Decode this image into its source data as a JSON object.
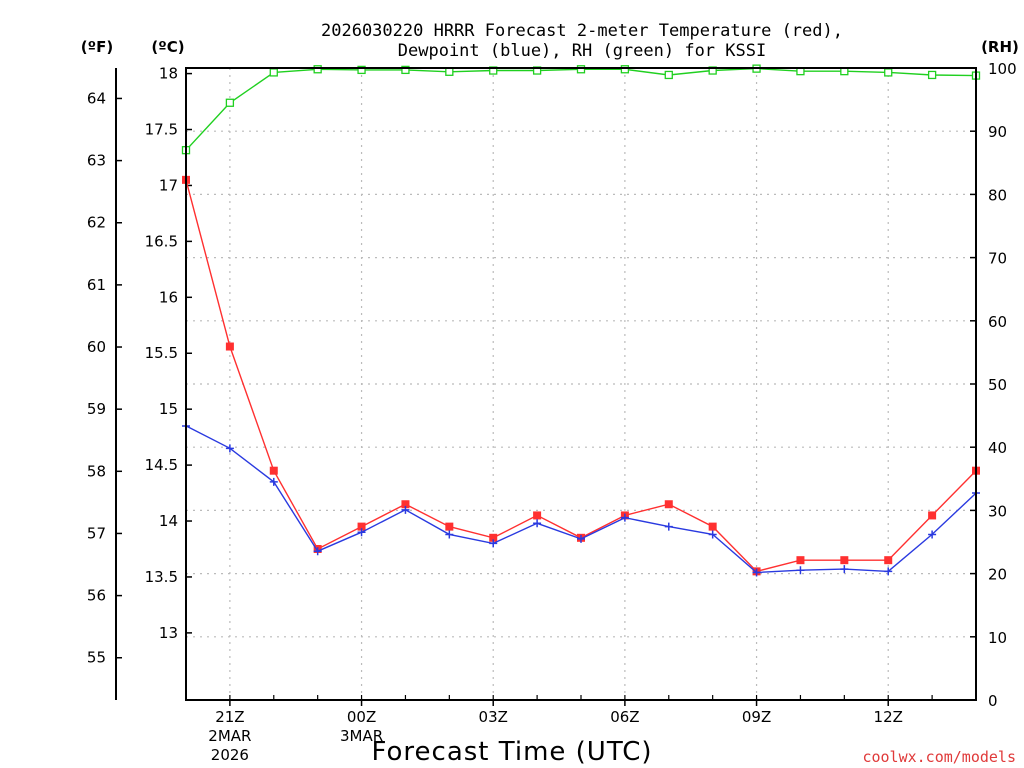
{
  "title_line1": "2026030220 HRRR Forecast 2-meter Temperature (red),",
  "title_line2": "Dewpoint (blue), RH (green) for KSSI",
  "unit_f": "(ºF)",
  "unit_c": "(ºC)",
  "unit_rh": "(RH)",
  "credit": "coolwx.com/models",
  "colors": {
    "temperature": "#ff3030",
    "dewpoint": "#2a3ae0",
    "rh": "#20d020",
    "grid": "#bbbbbb"
  },
  "chart_data": {
    "type": "line",
    "xlabel": "Forecast Time (UTC)",
    "x": [
      "2026-03-02 20Z",
      "2026-03-02 21Z",
      "2026-03-02 22Z",
      "2026-03-02 23Z",
      "2026-03-03 00Z",
      "2026-03-03 01Z",
      "2026-03-03 02Z",
      "2026-03-03 03Z",
      "2026-03-03 04Z",
      "2026-03-03 05Z",
      "2026-03-03 06Z",
      "2026-03-03 07Z",
      "2026-03-03 08Z",
      "2026-03-03 09Z",
      "2026-03-03 10Z",
      "2026-03-03 11Z",
      "2026-03-03 12Z",
      "2026-03-03 13Z",
      "2026-03-03 14Z"
    ],
    "x_ticks": [
      {
        "label": "21Z",
        "sub1": "2MAR",
        "sub2": "2026",
        "index": 1
      },
      {
        "label": "00Z",
        "sub1": "3MAR",
        "sub2": "",
        "index": 4
      },
      {
        "label": "03Z",
        "sub1": "",
        "sub2": "",
        "index": 7
      },
      {
        "label": "06Z",
        "sub1": "",
        "sub2": "",
        "index": 10
      },
      {
        "label": "09Z",
        "sub1": "",
        "sub2": "",
        "index": 13
      },
      {
        "label": "12Z",
        "sub1": "",
        "sub2": "",
        "index": 16
      }
    ],
    "y_celsius_range": [
      12.4,
      18.05
    ],
    "y_celsius_ticks": [
      "13",
      "13.5",
      "14",
      "14.5",
      "15",
      "15.5",
      "16",
      "16.5",
      "17",
      "17.5",
      "18"
    ],
    "y_fahrenheit_ticks": [
      "55",
      "56",
      "57",
      "58",
      "59",
      "60",
      "61",
      "62",
      "63",
      "64"
    ],
    "y_rh_range": [
      0,
      100
    ],
    "y_rh_ticks": [
      "0",
      "10",
      "20",
      "30",
      "40",
      "50",
      "60",
      "70",
      "80",
      "90",
      "100"
    ],
    "grid": true,
    "series": [
      {
        "key": "temperature",
        "axis": "celsius",
        "marker": "square",
        "values": [
          17.05,
          15.56,
          14.45,
          13.75,
          13.95,
          14.15,
          13.95,
          13.85,
          14.05,
          13.85,
          14.05,
          14.15,
          13.95,
          13.55,
          13.65,
          13.65,
          13.65,
          14.05,
          14.45
        ]
      },
      {
        "key": "dewpoint",
        "axis": "celsius",
        "marker": "plus",
        "values": [
          14.85,
          14.65,
          14.35,
          13.73,
          13.9,
          14.1,
          13.88,
          13.8,
          13.98,
          13.84,
          14.03,
          13.95,
          13.88,
          13.54,
          13.56,
          13.57,
          13.55,
          13.88,
          14.25
        ]
      },
      {
        "key": "rh",
        "axis": "rh",
        "marker": "open-square",
        "values": [
          87,
          94.5,
          99.3,
          99.8,
          99.7,
          99.7,
          99.4,
          99.6,
          99.6,
          99.8,
          99.8,
          98.9,
          99.6,
          99.9,
          99.5,
          99.5,
          99.3,
          98.9,
          98.8
        ]
      }
    ]
  }
}
